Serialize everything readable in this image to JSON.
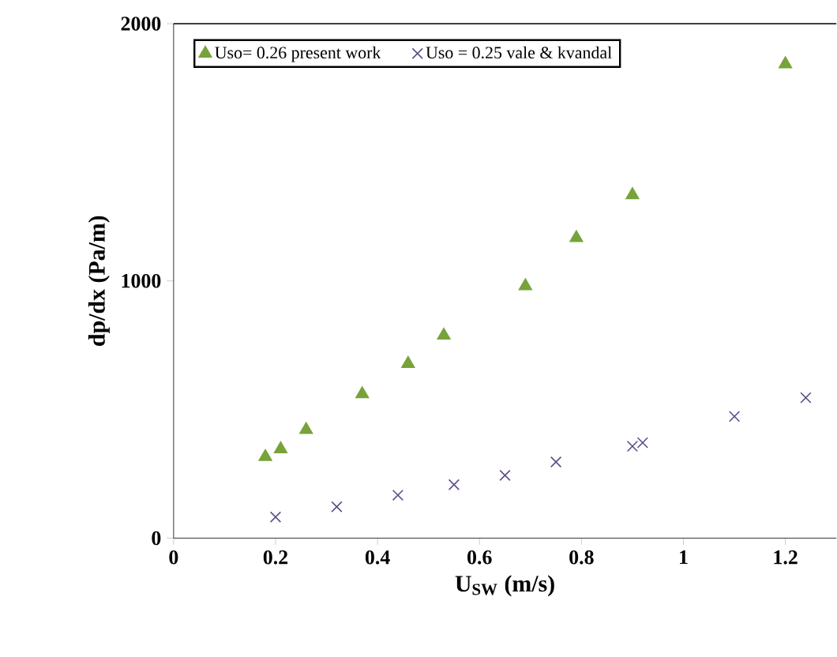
{
  "chart_data": {
    "type": "scatter",
    "xlabel": "U$_{SW}$ (m/s)",
    "ylabel": "dp/dx (Pa/m)",
    "xlim": [
      0,
      1.3
    ],
    "ylim": [
      0,
      2000
    ],
    "xticks": [
      0,
      0.2,
      0.4,
      0.6,
      0.8,
      1,
      1.2
    ],
    "yticks": [
      0,
      1000,
      2000
    ],
    "legend": "top left",
    "grid": false,
    "series": [
      {
        "name": "Uso= 0.26 present work",
        "color": "#77a33a",
        "marker": "triangle",
        "x": [
          0.18,
          0.21,
          0.26,
          0.37,
          0.46,
          0.53,
          0.69,
          0.79,
          0.9,
          1.2
        ],
        "values": [
          316,
          346,
          421,
          560,
          678,
          788,
          980,
          1167,
          1334,
          1843
        ]
      },
      {
        "name": "Uso = 0.25 vale & kvandal",
        "color": "#5e4b8b",
        "marker": "cross",
        "x": [
          0.2,
          0.32,
          0.44,
          0.55,
          0.65,
          0.75,
          0.9,
          0.92,
          1.1,
          1.24
        ],
        "values": [
          82,
          122,
          167,
          208,
          244,
          296,
          357,
          371,
          473,
          546
        ]
      }
    ]
  }
}
